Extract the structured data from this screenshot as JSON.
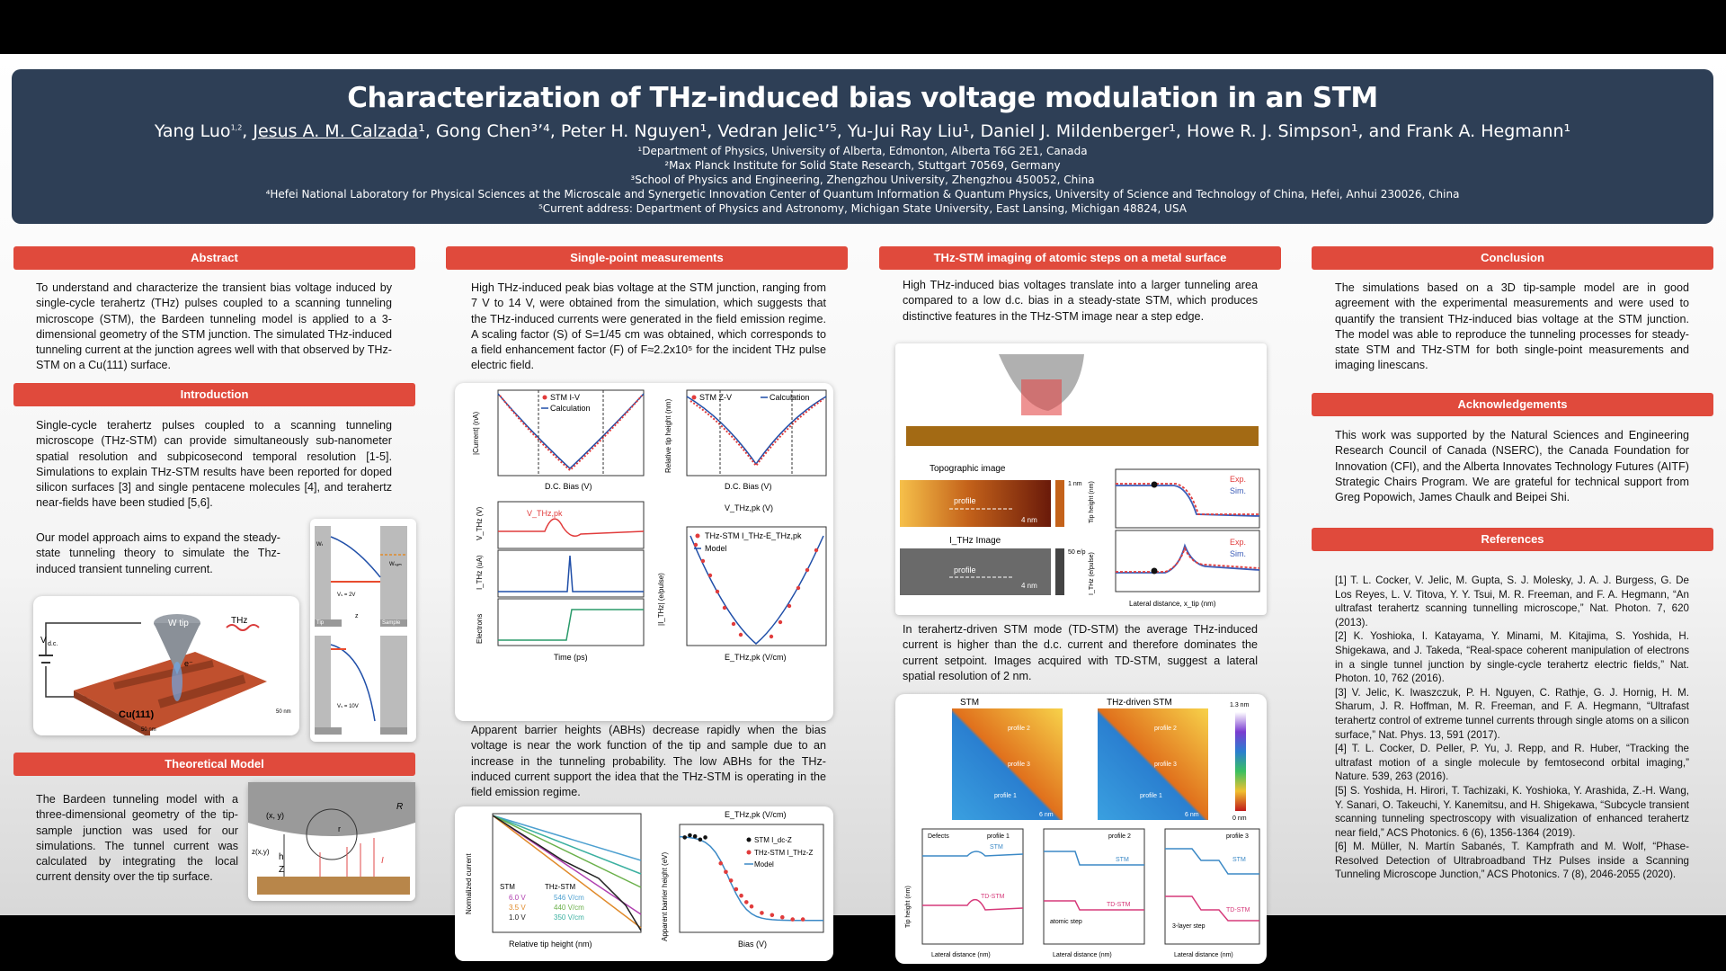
{
  "header": {
    "title": "Characterization of THz-induced bias voltage modulation in an STM",
    "authors_pre": "Yang Luo",
    "authors_sup1": "1,2",
    "authors_sep1": ", ",
    "authors_presenter": "Jesus A. M. Calzada",
    "authors_rest": "¹, Gong Chen³ʼ⁴, Peter H. Nguyen¹, Vedran Jelic¹ʼ⁵, Yu-Jui Ray Liu¹, Daniel J.  Mildenberger¹, Howe R. J. Simpson¹, and Frank A. Hegmann¹",
    "affiliations": [
      "¹Department of Physics, University of Alberta, Edmonton, Alberta T6G 2E1, Canada",
      "²Max Planck Institute for Solid State Research, Stuttgart 70569, Germany",
      "³School of Physics and Engineering, Zhengzhou University, Zhengzhou 450052, China",
      "⁴Hefei National Laboratory for Physical Sciences at the Microscale and Synergetic Innovation Center of Quantum Information & Quantum Physics, University of Science and Technology of China, Hefei, Anhui 230026, China",
      "⁵Current address: Department of Physics and Astronomy, Michigan State University, East Lansing, Michigan 48824, USA"
    ]
  },
  "sections": {
    "abstract": {
      "title": "Abstract",
      "text": "To understand and characterize the transient bias voltage induced by single-cycle terahertz (THz) pulses coupled to a scanning tunneling microscope (STM), the Bardeen tunneling model is applied to a 3-dimensional geometry of the STM junction. The simulated THz-induced tunneling current at the junction agrees well with that observed by THz-STM on a Cu(111) surface."
    },
    "introduction": {
      "title": "Introduction",
      "text": "Single-cycle terahertz pulses coupled to a scanning tunneling microscope (THz-STM) can provide simultaneously sub-nanometer spatial resolution and subpicosecond temporal resolution [1-5]. Simulations to explain THz-STM results have been reported for doped silicon surfaces [3] and single pentacene molecules [4], and terahertz near-fields have been studied [5,6].",
      "text2": "Our model approach aims to expand the steady-state tunneling theory to simulate the Thz-induced transient tunneling current."
    },
    "theory": {
      "title": "Theoretical Model",
      "text": "The Bardeen tunneling model with a three-dimensional geometry of the tip-sample junction was used for our simulations. The tunnel current was calculated by integrating the local current density over the tip surface."
    },
    "single_point": {
      "title": "Single-point measurements",
      "text": "High THz-induced peak bias voltage at the STM junction, ranging from 7 V to 14 V, were obtained from the simulation, which suggests that the THz-induced currents were generated in the field emission regime. A scaling factor (S) of S=1/45 cm was obtained, which corresponds to a field enhancement factor (F) of F≈2.2x10⁵ for the incident THz pulse electric field.",
      "text2": "Apparent barrier heights (ABHs) decrease rapidly when the bias voltage is near the work function of the tip and sample due to an increase in the tunneling probability. The low ABHs for the THz-induced current support the idea that the THz-STM is operating in the field emission regime."
    },
    "imaging": {
      "title": "THz-STM imaging of atomic steps on a metal surface",
      "text": "High THz-induced bias voltages translate into a larger tunneling area compared to a low d.c. bias in a steady-state STM, which produces distinctive features in the THz-STM image near a step edge.",
      "text2": "In terahertz-driven STM mode (TD-STM) the average THz-induced current is higher than the d.c. current and therefore dominates the current setpoint. Images acquired with TD-STM, suggest a lateral spatial resolution of 2 nm."
    },
    "conclusion": {
      "title": "Conclusion",
      "text": "The simulations based on a 3D tip-sample model are in good agreement with the experimental measurements and were used to quantify the transient THz-induced bias voltage at the STM junction. The model was able to reproduce the tunneling processes for steady-state STM and THz-STM for both single-point measurements and imaging linescans."
    },
    "acknowledgements": {
      "title": "Acknowledgements",
      "text": "This work was supported by the Natural Sciences and Engineering Research Council of Canada (NSERC), the Canada Foundation for Innovation (CFI), and the Alberta Innovates Technology Futures (AITF) Strategic Chairs Program. We are grateful for technical support from Greg Popowich, James Chaulk and Beipei Shi."
    },
    "references": {
      "title": "References",
      "items": [
        "[1] T. L. Cocker, V. Jelic, M. Gupta, S. J. Molesky, J. A. J. Burgess, G. De Los Reyes, L. V. Titova, Y. Y. Tsui, M. R. Freeman, and F. A. Hegmann, “An ultrafast terahertz scanning tunnelling microscope,” Nat. Photon. 7, 620 (2013).",
        "[2] K. Yoshioka, I. Katayama, Y. Minami, M. Kitajima, S. Yoshida, H. Shigekawa, and J. Takeda, “Real-space coherent manipulation of electrons in a single tunnel junction by single-cycle terahertz electric fields,” Nat. Photon. 10, 762 (2016).",
        "[3] V. Jelic, K. Iwaszczuk, P. H. Nguyen, C. Rathje, G. J. Hornig, H. M. Sharum, J. R. Hoffman, M. R. Freeman, and F. A. Hegmann, “Ultrafast terahertz control of extreme tunnel currents through single atoms on a silicon surface,” Nat. Phys. 13, 591 (2017).",
        "[4] T. L. Cocker, D. Peller, P. Yu, J. Repp, and R. Huber, “Tracking the ultrafast motion of a single molecule by femtosecond orbital imaging,” Nature. 539, 263 (2016).",
        "[5] S. Yoshida, H. Hirori, T. Tachizaki, K. Yoshioka, Y. Arashida, Z.-H. Wang, Y. Sanari, O. Takeuchi, Y. Kanemitsu, and H. Shigekawa, “Subcycle transient scanning tunneling spectroscopy with visualization of enhanced terahertz near field,” ACS Photonics. 6 (6), 1356-1364 (2019).",
        "[6] M. Müller, N. Martín Sabanés, T. Kampfrath and M. Wolf, “Phase-Resolved Detection of Ultrabroadband THz Pulses inside a Scanning Tunneling Microscope Junction,” ACS Photonics. 7 (8), 2046-2055 (2020)."
      ]
    }
  },
  "figures": {
    "setup": {
      "vdc": "V",
      "vdc_sub": "d.c.",
      "tip": "W tip",
      "thz": "THz",
      "sample": "Cu(111)",
      "e": "e⁻",
      "scale1": "50 nm",
      "scale2": "50 nm"
    },
    "energy": {
      "top_label": "V",
      "v1": "Vₛ = 2V",
      "v2": "Vₛ = 10V",
      "wtip": "Wₜ",
      "wsam": "Wₛₐₘ",
      "z": "z",
      "tip": "Tip",
      "sample": "Sample"
    },
    "theory_fig": {
      "xy": "(x, y)",
      "r": "r",
      "R": "R",
      "zxy": "z(x,y)",
      "h": "h",
      "Z": "Z",
      "I": "I"
    },
    "iv": {
      "legend1": "STM I-V",
      "legend2": "Calculation",
      "xlabel": "D.C. Bias (V)",
      "ylabel": "|Current| (nA)"
    },
    "zv": {
      "legend1": "STM Z-V",
      "legend2": "Calculation",
      "xlabel": "D.C. Bias (V)",
      "ylabel": "Relative tip height (nm)"
    },
    "time": {
      "xlabel": "Time (ps)",
      "y1": "V_THz (V)",
      "y2": "I_THz (uA)",
      "y3": "Electrons",
      "vpk": "V_THz,pk"
    },
    "thz_iv": {
      "legend1": "THz-STM I_THz-E_THz,pk",
      "legend2": "Model",
      "xlabel": "E_THz,pk (V/cm)",
      "toplabel": "V_THz,pk (V)",
      "ylabel": "|I_THz| (e/pulse)"
    },
    "norm": {
      "ylabel": "Normalized current",
      "xlabel": "Relative tip height (nm)",
      "stm": "STM",
      "thz": "THz-STM",
      "l1": "6.0 V",
      "l2": "3.5 V",
      "l3": "1.0 V",
      "l4": "546 V/cm",
      "l5": "440 V/cm",
      "l6": "350 V/cm"
    },
    "abh": {
      "ylabel": "Apparent barrier height (eV)",
      "xlabel": "Bias (V)",
      "toplabel": "E_THz,pk (V/cm)",
      "legend1": "STM I_dc-Z",
      "legend2": "THz-STM I_THz-Z",
      "legend3": "Model"
    },
    "topo": {
      "title": "Topographic image",
      "title2": "I_THz Image",
      "profile": "profile",
      "scale": "4 nm",
      "cb1": "1 nm",
      "cb2": "50 e/p",
      "exp": "Exp.",
      "sim": "Sim.",
      "xlabel": "Lateral distance, x_tip (nm)",
      "y1": "Tip height (nm)",
      "y2": "I_THz (e/pulse)"
    },
    "maps": {
      "stm": "STM",
      "td": "THz-driven STM",
      "cbtop": "1.3 nm",
      "cbbot": "0 nm",
      "p1": "profile 1",
      "p2": "profile 2",
      "p3": "profile 3",
      "scale": "6 nm",
      "defects": "Defects",
      "atomic": "atomic step",
      "three": "3-layer step",
      "stm_lbl": "STM",
      "td_lbl": "TD-STM",
      "xl": "Lateral distance (nm)",
      "yl": "Tip height (nm)"
    }
  },
  "chart_data": [
    {
      "type": "line",
      "title": "",
      "xlabel": "D.C. Bias (V)",
      "ylabel": "|Current| (nA)",
      "xlim": [
        -10,
        10
      ],
      "series": [
        {
          "name": "STM I-V"
        },
        {
          "name": "Calculation"
        }
      ]
    },
    {
      "type": "line",
      "title": "",
      "xlabel": "D.C. Bias (V)",
      "ylabel": "Relative tip height (nm)",
      "xlim": [
        -10,
        10
      ],
      "series": [
        {
          "name": "STM Z-V"
        },
        {
          "name": "Calculation"
        }
      ]
    },
    {
      "type": "scatter",
      "title": "",
      "xlabel": "E_THz,pk (V/cm)",
      "ylabel": "|I_THz| (e/pulse)",
      "xlim": [
        -700,
        700
      ],
      "series": [
        {
          "name": "THz-STM I_THz-E_THz,pk"
        },
        {
          "name": "Model"
        }
      ]
    },
    {
      "type": "scatter",
      "title": "",
      "xlabel": "Bias (V)",
      "ylabel": "Apparent barrier height (eV)",
      "xlim": [
        0,
        14
      ],
      "ylim": [
        0,
        5
      ],
      "series": [
        {
          "name": "STM I_dc-Z",
          "x": [
            0.5,
            1,
            1.5,
            2,
            2.5
          ],
          "y": [
            4.4,
            4.5,
            4.45,
            4.3,
            4.4
          ]
        },
        {
          "name": "THz-STM I_THz-Z",
          "x": [
            4,
            4.5,
            5,
            5.5,
            6,
            6.5,
            7,
            8,
            9,
            10,
            11,
            12
          ],
          "y": [
            3.2,
            2.8,
            2.4,
            2.0,
            1.7,
            1.4,
            1.2,
            0.9,
            0.8,
            0.7,
            0.6,
            0.6
          ]
        },
        {
          "name": "Model"
        }
      ]
    }
  ]
}
